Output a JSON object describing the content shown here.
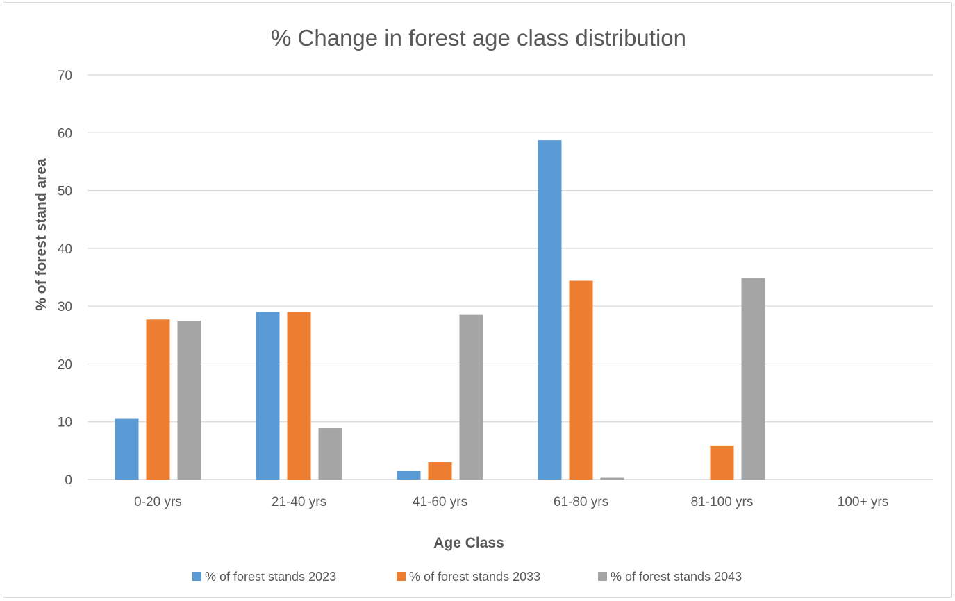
{
  "chart_data": {
    "type": "bar",
    "title": "% Change in forest age class distribution",
    "xlabel": "Age Class",
    "ylabel": "% of forest stand area",
    "categories": [
      "0-20 yrs",
      "21-40 yrs",
      "41-60 yrs",
      "61-80 yrs",
      "81-100 yrs",
      "100+ yrs"
    ],
    "series": [
      {
        "name": "% of forest stands 2023",
        "color": "#5b9bd5",
        "values": [
          10.5,
          29,
          1.5,
          58.7,
          0,
          0
        ]
      },
      {
        "name": "% of forest stands 2033",
        "color": "#ed7d31",
        "values": [
          27.7,
          29,
          3,
          34.4,
          5.9,
          0
        ]
      },
      {
        "name": "% of forest stands 2043",
        "color": "#a5a5a5",
        "values": [
          27.5,
          9,
          28.5,
          0.3,
          34.9,
          0
        ]
      }
    ],
    "ylim": [
      0,
      70
    ],
    "yticks": [
      0,
      10,
      20,
      30,
      40,
      50,
      60,
      70
    ],
    "grid": true,
    "legend_position": "bottom"
  }
}
